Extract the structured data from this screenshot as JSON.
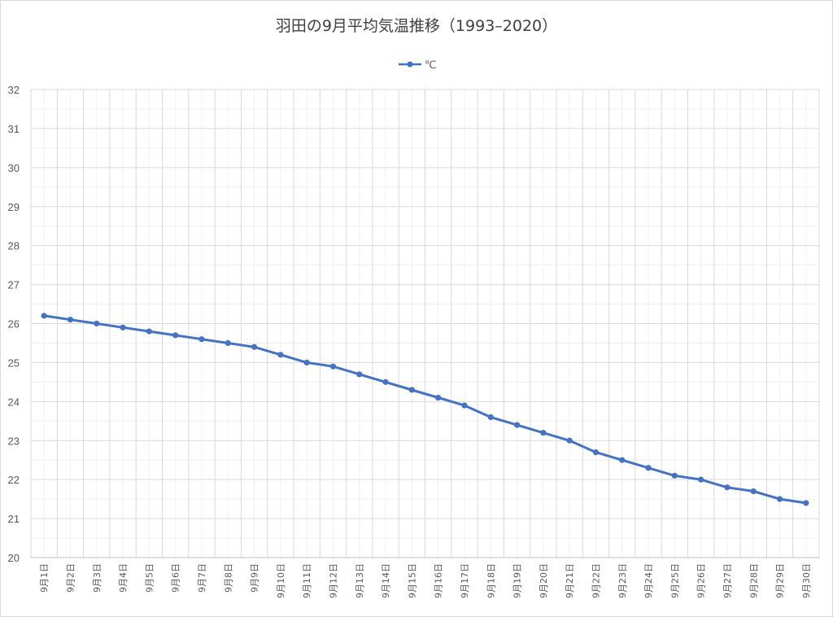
{
  "chart_data": {
    "type": "line",
    "title": "羽田の9月平均気温推移（1993–2020）",
    "xlabel": "",
    "ylabel": "",
    "categories": [
      "9月1日",
      "9月2日",
      "9月3日",
      "9月4日",
      "9月5日",
      "9月6日",
      "9月7日",
      "9月8日",
      "9月9日",
      "9月10日",
      "9月11日",
      "9月12日",
      "9月13日",
      "9月14日",
      "9月15日",
      "9月16日",
      "9月17日",
      "9月18日",
      "9月19日",
      "9月20日",
      "9月21日",
      "9月22日",
      "9月23日",
      "9月24日",
      "9月25日",
      "9月26日",
      "9月27日",
      "9月28日",
      "9月29日",
      "9月30日"
    ],
    "series": [
      {
        "name": "℃",
        "color": "#4472c4",
        "values": [
          26.2,
          26.1,
          26.0,
          25.9,
          25.8,
          25.7,
          25.6,
          25.5,
          25.4,
          25.2,
          25.0,
          24.9,
          24.7,
          24.5,
          24.3,
          24.1,
          23.9,
          23.6,
          23.4,
          23.2,
          23.0,
          22.7,
          22.5,
          22.3,
          22.1,
          22.0,
          21.8,
          21.7,
          21.5,
          21.4
        ]
      }
    ],
    "ylim": [
      20,
      32
    ],
    "yticks": [
      "20",
      "21",
      "22",
      "23",
      "24",
      "25",
      "26",
      "27",
      "28",
      "29",
      "30",
      "31",
      "32"
    ],
    "grid": true,
    "legend": "top-center"
  }
}
